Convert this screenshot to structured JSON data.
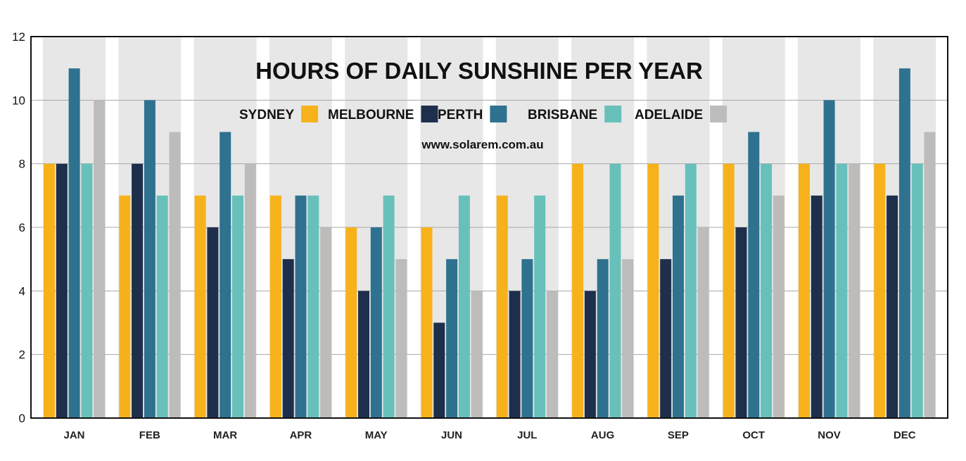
{
  "chart_data": {
    "type": "bar",
    "title": "HOURS OF DAILY SUNSHINE PER YEAR",
    "source": "www.solarem.com.au",
    "categories": [
      "JAN",
      "FEB",
      "MAR",
      "APR",
      "MAY",
      "JUN",
      "JUL",
      "AUG",
      "SEP",
      "OCT",
      "NOV",
      "DEC"
    ],
    "series": [
      {
        "name": "SYDNEY",
        "color": "#F7B21B",
        "values": [
          8,
          7,
          7,
          7,
          6,
          6,
          7,
          8,
          8,
          8,
          8,
          8
        ]
      },
      {
        "name": "MELBOURNE",
        "color": "#1E2F4B",
        "values": [
          8,
          8,
          6,
          5,
          4,
          3,
          4,
          4,
          5,
          6,
          7,
          7
        ]
      },
      {
        "name": "PERTH",
        "color": "#2E728F",
        "values": [
          11,
          10,
          9,
          7,
          6,
          5,
          5,
          5,
          7,
          9,
          10,
          11
        ]
      },
      {
        "name": "BRISBANE",
        "color": "#68C0BB",
        "values": [
          8,
          7,
          7,
          7,
          7,
          7,
          7,
          8,
          8,
          8,
          8,
          8
        ]
      },
      {
        "name": "ADELAIDE",
        "color": "#BDBCBA",
        "values": [
          10,
          9,
          8,
          6,
          5,
          4,
          4,
          5,
          6,
          7,
          8,
          9
        ]
      }
    ],
    "ylim": [
      0,
      12
    ],
    "yticks": [
      0,
      2,
      4,
      6,
      8,
      10,
      12
    ],
    "grid": true,
    "legend_position": "top-center"
  }
}
